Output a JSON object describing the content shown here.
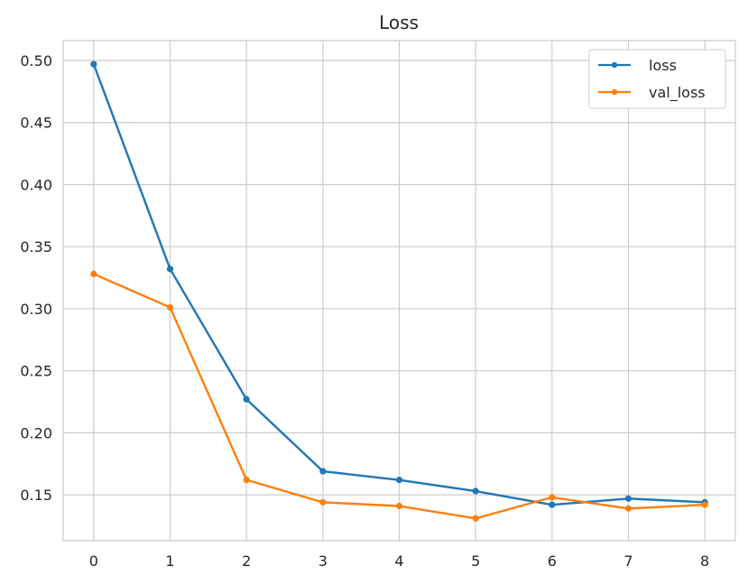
{
  "colors": {
    "loss": "#1f77b4",
    "val_loss": "#ff7f0e",
    "grid": "#cccccc",
    "background": "#ffffff",
    "text": "#262626"
  },
  "chart_data": {
    "type": "line",
    "title": "Loss",
    "xlabel": "",
    "ylabel": "",
    "x": [
      0,
      1,
      2,
      3,
      4,
      5,
      6,
      7,
      8
    ],
    "xlim": [
      -0.4,
      8.4
    ],
    "ylim": [
      0.113,
      0.516
    ],
    "xticks": [
      0,
      1,
      2,
      3,
      4,
      5,
      6,
      7,
      8
    ],
    "yticks": [
      0.15,
      0.2,
      0.25,
      0.3,
      0.35,
      0.4,
      0.45,
      0.5
    ],
    "ytick_labels": [
      "0.15",
      "0.20",
      "0.25",
      "0.30",
      "0.35",
      "0.40",
      "0.45",
      "0.50"
    ],
    "grid": true,
    "legend_position": "top-right",
    "marker": "circle",
    "series": [
      {
        "name": "loss",
        "values": [
          0.497,
          0.332,
          0.227,
          0.169,
          0.162,
          0.153,
          0.142,
          0.147,
          0.144
        ]
      },
      {
        "name": "val_loss",
        "values": [
          0.328,
          0.301,
          0.162,
          0.144,
          0.141,
          0.131,
          0.148,
          0.139,
          0.142
        ]
      }
    ]
  }
}
